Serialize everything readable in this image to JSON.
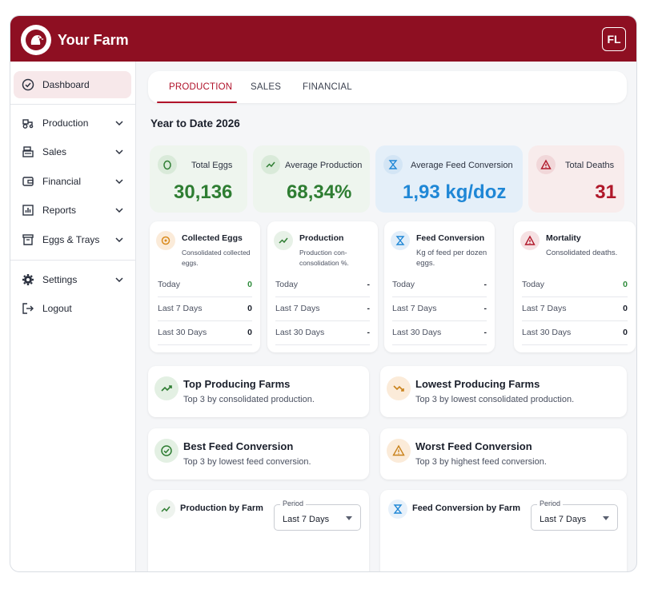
{
  "header": {
    "brand": "Your Farm",
    "avatar_initials": "FL",
    "color": "#8e0f22"
  },
  "sidebar": {
    "items": [
      {
        "label": "Dashboard",
        "icon": "check-circle-icon",
        "active": true
      },
      {
        "label": "Production",
        "icon": "tractor-icon"
      },
      {
        "label": "Sales",
        "icon": "register-icon"
      },
      {
        "label": "Financial",
        "icon": "wallet-icon"
      },
      {
        "label": "Reports",
        "icon": "bar-chart-icon"
      },
      {
        "label": "Eggs & Trays",
        "icon": "tray-icon"
      },
      {
        "label": "Settings",
        "icon": "gear-icon"
      },
      {
        "label": "Logout",
        "icon": "logout-icon"
      }
    ]
  },
  "tabs": [
    {
      "label": "PRODUCTION",
      "active": true
    },
    {
      "label": "SALES"
    },
    {
      "label": "FINANCIAL"
    }
  ],
  "year_title": "Year to Date 2026",
  "kpis": [
    {
      "label": "Total Eggs",
      "value": "30,136",
      "icon": "egg-icon",
      "color": "#2e7d32"
    },
    {
      "label": "Average Production",
      "value": "68,34%",
      "icon": "trend-up-icon",
      "color": "#2e7d32"
    },
    {
      "label": "Average Feed Conversion",
      "value": "1,93 kg/doz",
      "icon": "hourglass-icon",
      "color": "#1f87d6"
    },
    {
      "label": "Total Deaths",
      "value": "31",
      "icon": "warning-icon",
      "color": "#b0182a"
    }
  ],
  "stats": [
    {
      "title": "Collected Eggs",
      "subtitle": "Consolidated collected eggs.",
      "icon": "egg-icon",
      "rows": [
        {
          "label": "Today",
          "value": "0"
        },
        {
          "label": "Last 7 Days",
          "value": "0"
        },
        {
          "label": "Last 30 Days",
          "value": "0"
        }
      ]
    },
    {
      "title": "Production",
      "subtitle": "Production con-consolidation %.",
      "icon": "trend-up-icon",
      "rows": [
        {
          "label": "Today",
          "value": "-"
        },
        {
          "label": "Last 7 Days",
          "value": "-"
        },
        {
          "label": "Last 30 Days",
          "value": "-"
        }
      ]
    },
    {
      "title": "Feed Conversion",
      "subtitle": "Kg of feed per dozen eggs.",
      "icon": "hourglass-icon",
      "rows": [
        {
          "label": "Today",
          "value": "-"
        },
        {
          "label": "Last 7 Days",
          "value": "-"
        },
        {
          "label": "Last 30 Days",
          "value": "-"
        }
      ]
    },
    {
      "title": "Mortality",
      "subtitle": "Consolidated deaths.",
      "icon": "warning-icon",
      "rows": [
        {
          "label": "Today",
          "value": "0"
        },
        {
          "label": "Last 7 Days",
          "value": "0"
        },
        {
          "label": "Last 30 Days",
          "value": "0"
        }
      ]
    }
  ],
  "rankings": [
    {
      "title": "Top Producing Farms",
      "subtitle": "Top 3 by consolidated production.",
      "icon": "trend-up-icon"
    },
    {
      "title": "Lowest Producing Farms",
      "subtitle": "Top 3 by lowest consolidated production.",
      "icon": "trend-down-icon"
    },
    {
      "title": "Best Feed Conversion",
      "subtitle": "Top 3 by lowest feed conversion.",
      "icon": "check-circle-icon"
    },
    {
      "title": "Worst Feed Conversion",
      "subtitle": "Top 3 by highest feed conversion.",
      "icon": "warning-icon"
    }
  ],
  "charts": [
    {
      "title": "Production by Farm",
      "period_label": "Period",
      "period_value": "Last 7 Days",
      "icon": "trend-up-icon"
    },
    {
      "title": "Feed Conversion by Farm",
      "period_label": "Period",
      "period_value": "Last 7 Days",
      "icon": "hourglass-icon"
    }
  ]
}
